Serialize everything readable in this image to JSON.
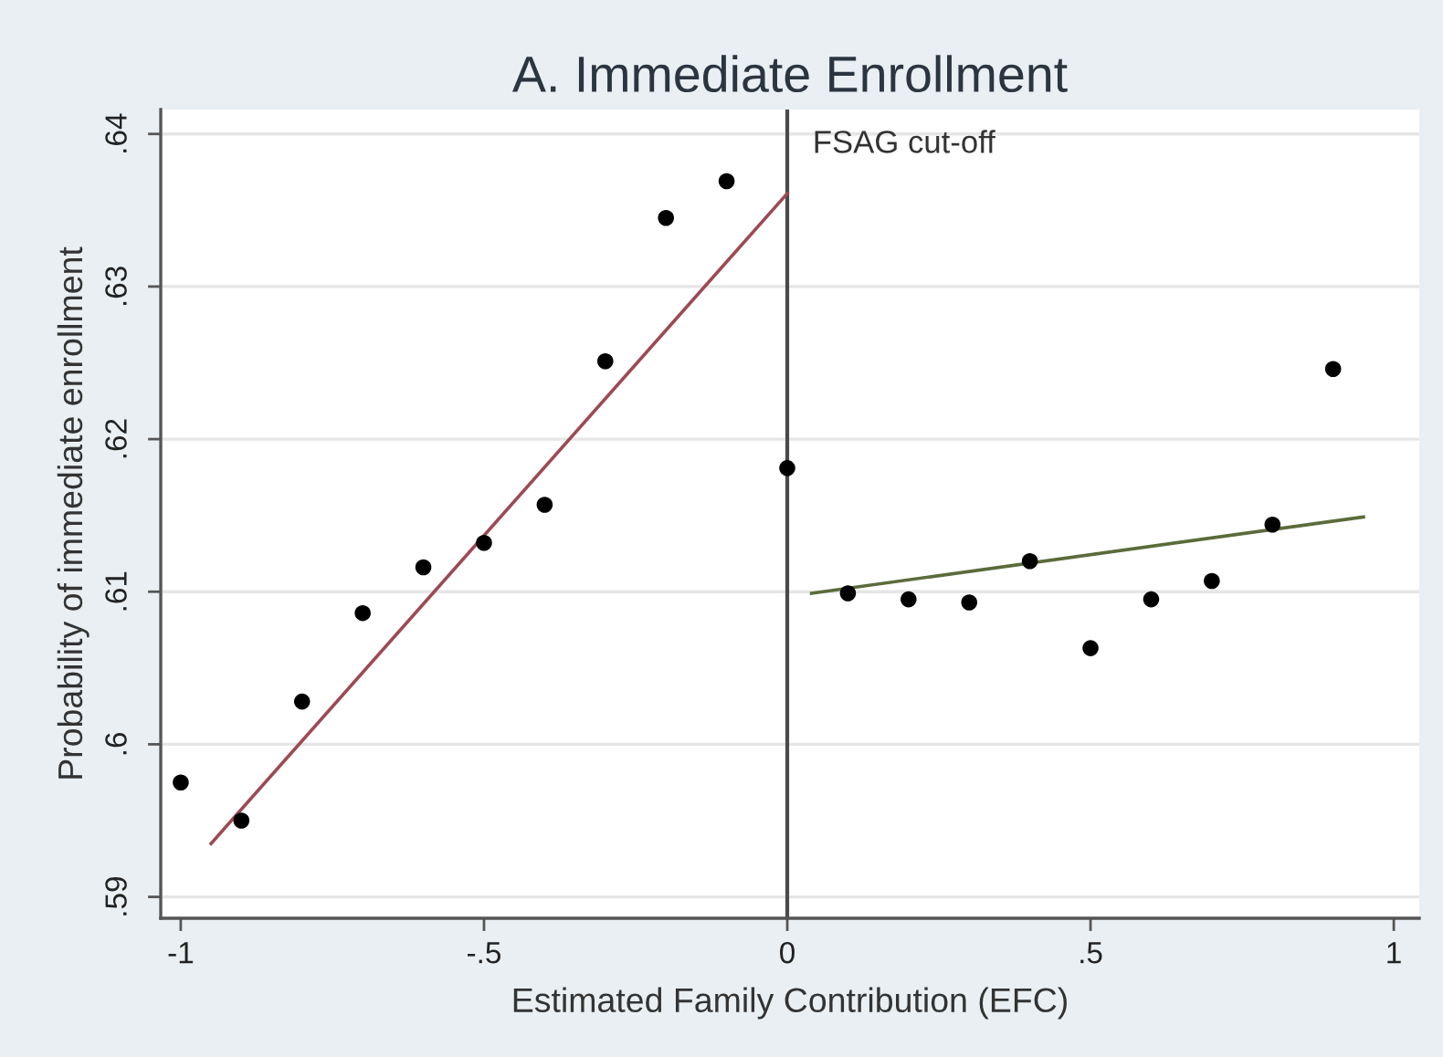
{
  "chart_data": {
    "type": "scatter",
    "title": "A. Immediate Enrollment",
    "xlabel": "Estimated Family Contribution (EFC)",
    "ylabel": "Probability of immediate enrollment",
    "series": [
      {
        "color": "#000000",
        "marker": "circle",
        "x": [
          -1,
          -0.9,
          -0.8,
          -0.7,
          -0.6,
          -0.5,
          -0.4,
          -0.3,
          -0.2,
          -0.1,
          0
        ],
        "values": [
          0.5975,
          0.595,
          0.6028,
          0.6086,
          0.6116,
          0.6132,
          0.6157,
          0.6251,
          0.6345,
          0.6369,
          0.6181
        ]
      },
      {
        "color": "#000000",
        "marker": "circle",
        "x": [
          0.1,
          0.2,
          0.3,
          0.4,
          0.5,
          0.6,
          0.7,
          0.8,
          0.9
        ],
        "values": [
          0.6099,
          0.6095,
          0.6093,
          0.612,
          0.6063,
          0.6095,
          0.6107,
          0.6144,
          0.6246
        ]
      },
      {
        "type": "line",
        "color": "#9c4a52",
        "marker": "none",
        "x": [
          -0.95,
          0
        ],
        "values": [
          0.5935,
          0.6361
        ]
      },
      {
        "type": "line",
        "color": "#5b6b3a",
        "marker": "none",
        "x": [
          0.04,
          0.95
        ],
        "values": [
          0.6099,
          0.6149
        ]
      }
    ],
    "xlim": [
      -1.033,
      1.042
    ],
    "ylim": [
      0.5886,
      0.6416
    ],
    "xticks": [
      {
        "value": -1,
        "label": "-1"
      },
      {
        "value": -0.5,
        "label": "-.5"
      },
      {
        "value": 0,
        "label": "0"
      },
      {
        "value": 0.5,
        "label": ".5"
      },
      {
        "value": 1,
        "label": "1"
      }
    ],
    "yticks": [
      {
        "value": 0.59,
        "label": ".59"
      },
      {
        "value": 0.6,
        "label": ".6"
      },
      {
        "value": 0.61,
        "label": ".61"
      },
      {
        "value": 0.62,
        "label": ".62"
      },
      {
        "value": 0.63,
        "label": ".63"
      },
      {
        "value": 0.64,
        "label": ".64"
      }
    ],
    "grid": "y",
    "ref_lines": [
      {
        "axis": "x",
        "value": 0,
        "label": "FSAG cut-off",
        "color": "#4a4a4a"
      }
    ]
  }
}
